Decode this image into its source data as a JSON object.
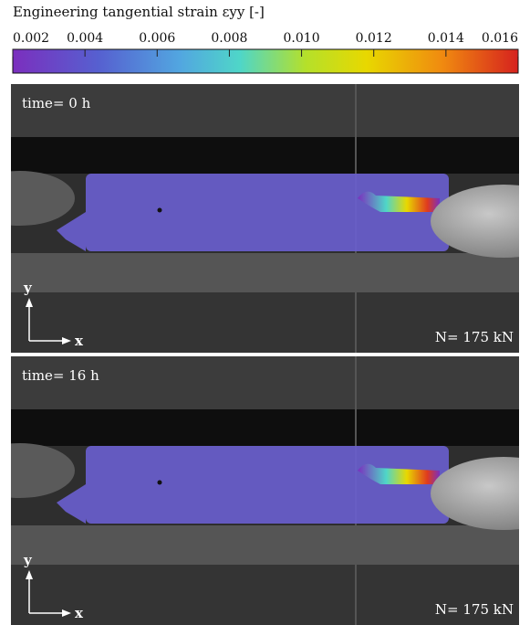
{
  "colorbar": {
    "label": "Engineering tangential strain εyy [-]",
    "clim": [
      0.002,
      0.016
    ],
    "ticks": [
      0.002,
      0.004,
      0.006,
      0.008,
      {
        "value": 0.01,
        "label": "0.010"
      },
      0.012,
      0.014,
      0.016
    ]
  },
  "panels": [
    {
      "time_label": "time= 0 h",
      "load_label": "N= 175 kN",
      "y_axis": "y",
      "x_axis": "x"
    },
    {
      "time_label": "time= 16 h",
      "load_label": "N= 175 kN",
      "y_axis": "y",
      "x_axis": "x"
    }
  ]
}
